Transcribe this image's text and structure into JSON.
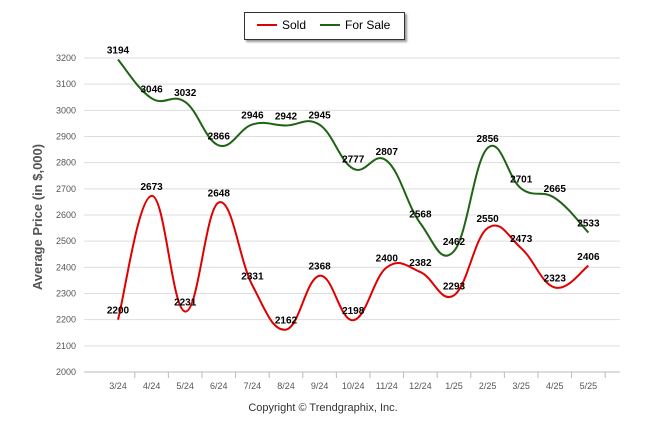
{
  "legend": {
    "sold_label": "Sold",
    "for_sale_label": "For Sale"
  },
  "footer": {
    "copyright": "Copyright © Trendgraphix, Inc."
  },
  "colors": {
    "sold": "#e00000",
    "for_sale": "#1e6414",
    "grid": "#dddddd",
    "axis_text": "#555555"
  },
  "chart_data": {
    "type": "line",
    "title": "",
    "xlabel": "",
    "ylabel": "Average Price (in $,000)",
    "ylim": [
      2000,
      3200
    ],
    "yticks": [
      2000,
      2100,
      2200,
      2300,
      2400,
      2500,
      2600,
      2700,
      2800,
      2900,
      3000,
      3100,
      3200
    ],
    "grid": true,
    "legend_position": "top-center",
    "categories": [
      "3/24",
      "4/24",
      "5/24",
      "6/24",
      "7/24",
      "8/24",
      "9/24",
      "10/24",
      "11/24",
      "12/24",
      "1/25",
      "2/25",
      "3/25",
      "4/25",
      "5/25"
    ],
    "series": [
      {
        "name": "Sold",
        "values": [
          2200,
          2673,
          2231,
          2648,
          2331,
          2162,
          2368,
          2198,
          2400,
          2382,
          2293,
          2550,
          2473,
          2323,
          2406
        ]
      },
      {
        "name": "For Sale",
        "values": [
          3194,
          3046,
          3032,
          2866,
          2946,
          2942,
          2945,
          2777,
          2807,
          2568,
          2462,
          2856,
          2701,
          2665,
          2533
        ]
      }
    ]
  }
}
